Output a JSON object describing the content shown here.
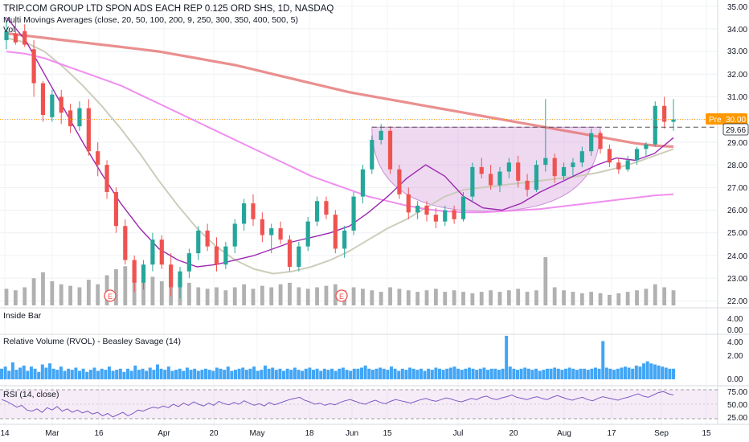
{
  "header": {
    "title": "TRIP.COM GROUP LTD SPON ADS EACH REP 0.125 ORD SHS, 1D, NASDAQ",
    "ma_label": "Multi Movings Averages (close, 20, 50, 100, 200, 9, 250, 300, 350, 400, 500, 5)",
    "vol_label": "Vol"
  },
  "price_axis": {
    "ticks": [
      "35.00",
      "34.00",
      "33.00",
      "32.00",
      "31.00",
      "29.00",
      "28.00",
      "27.00",
      "26.00",
      "25.00",
      "24.00",
      "23.00",
      "22.00"
    ],
    "pre_label": "Pre",
    "pre_value": "30.00",
    "last_value": "29.66"
  },
  "time_axis": {
    "labels": [
      "14",
      "Mar",
      "16",
      "Apr",
      "20",
      "May",
      "18",
      "Jun",
      "15",
      "Jul",
      "20",
      "Aug",
      "17",
      "Sep",
      "15"
    ]
  },
  "earnings_marker": "E",
  "panels": {
    "inside_bar": {
      "title": "Inside Bar",
      "ticks": [
        "4.00",
        "0.00"
      ]
    },
    "rvol": {
      "title": "Relative Volume (RVOL) - Beasley Savage (14)",
      "ticks": [
        "4.00",
        "2.00",
        "0.00"
      ]
    },
    "rsi": {
      "title": "RSI (14, close)",
      "ticks": [
        "75.00",
        "50.00",
        "25.00"
      ]
    }
  },
  "colors": {
    "up": "#26a69a",
    "down": "#ef5350",
    "volume": "#a3a3a3",
    "rvol": "#42a5f5",
    "ma_200": "#e57373",
    "ma_fast": "#9c27b0",
    "ma_50": "#c8c8b4",
    "ma_100": "#ee82ee",
    "rsi_line": "#7e57c2",
    "cup_fill": "#ce93d8"
  },
  "chart_data": {
    "type": "candlestick",
    "title": "TRIP.COM GROUP LTD SPON ADS EACH REP 0.125 ORD SHS, 1D, NASDAQ",
    "ylim": [
      21.8,
      35.2
    ],
    "resistance": 29.66,
    "pre_market": 30.0,
    "ma_200": [
      33.8,
      33.7,
      33.6,
      33.5,
      33.4,
      33.3,
      33.2,
      33.1,
      33.0,
      32.85,
      32.7,
      32.55,
      32.4,
      32.2,
      32.0,
      31.8,
      31.6,
      31.4,
      31.2,
      31.05,
      30.9,
      30.75,
      30.6,
      30.45,
      30.3,
      30.15,
      30.0,
      29.85,
      29.7,
      29.55,
      29.4,
      29.25,
      29.1,
      28.95,
      28.85,
      28.8
    ],
    "ma_100": [
      33.0,
      32.9,
      32.7,
      32.4,
      32.1,
      31.8,
      31.5,
      31.1,
      30.7,
      30.3,
      29.9,
      29.5,
      29.1,
      28.7,
      28.3,
      27.9,
      27.5,
      27.2,
      26.9,
      26.6,
      26.4,
      26.2,
      26.05,
      25.95,
      25.9,
      25.9,
      25.95,
      26.0,
      26.05,
      26.15,
      26.25,
      26.35,
      26.45,
      26.55,
      26.65,
      26.7
    ],
    "ma_50": [
      33.6,
      33.4,
      33.0,
      32.3,
      31.5,
      30.6,
      29.6,
      28.5,
      27.3,
      26.2,
      25.2,
      24.4,
      23.8,
      23.4,
      23.2,
      23.3,
      23.5,
      23.8,
      24.2,
      24.7,
      25.2,
      25.6,
      26.1,
      26.6,
      26.9,
      27.0,
      27.1,
      27.2,
      27.3,
      27.4,
      27.5,
      27.65,
      27.85,
      28.1,
      28.4,
      28.7
    ],
    "ma_fast": [
      34.5,
      33.5,
      32.0,
      30.5,
      29.0,
      27.6,
      26.3,
      25.2,
      24.3,
      23.8,
      23.5,
      23.6,
      23.8,
      24.0,
      24.3,
      24.6,
      24.8,
      25.0,
      25.3,
      25.9,
      26.6,
      27.4,
      28.0,
      27.5,
      26.6,
      26.1,
      26.0,
      26.3,
      26.8,
      27.2,
      27.6,
      28.0,
      28.3,
      28.2,
      28.5,
      29.2
    ],
    "candles": [
      {
        "o": 33.5,
        "h": 34.4,
        "l": 33.1,
        "c": 33.9
      },
      {
        "o": 33.8,
        "h": 34.3,
        "l": 33.3,
        "c": 33.4
      },
      {
        "o": 33.9,
        "h": 34.2,
        "l": 33.2,
        "c": 33.3
      },
      {
        "o": 33.1,
        "h": 33.5,
        "l": 31.0,
        "c": 31.6
      },
      {
        "o": 31.6,
        "h": 31.7,
        "l": 29.9,
        "c": 30.2
      },
      {
        "o": 30.1,
        "h": 31.3,
        "l": 29.9,
        "c": 31.1
      },
      {
        "o": 31.0,
        "h": 31.3,
        "l": 29.8,
        "c": 30.3
      },
      {
        "o": 30.4,
        "h": 30.7,
        "l": 29.4,
        "c": 29.7
      },
      {
        "o": 29.7,
        "h": 30.8,
        "l": 29.5,
        "c": 30.5
      },
      {
        "o": 30.5,
        "h": 30.9,
        "l": 28.4,
        "c": 28.6
      },
      {
        "o": 28.6,
        "h": 29.0,
        "l": 27.5,
        "c": 28.0
      },
      {
        "o": 28.0,
        "h": 28.2,
        "l": 26.5,
        "c": 26.8
      },
      {
        "o": 26.8,
        "h": 27.0,
        "l": 25.0,
        "c": 25.3
      },
      {
        "o": 25.3,
        "h": 25.6,
        "l": 23.6,
        "c": 23.8
      },
      {
        "o": 23.8,
        "h": 24.0,
        "l": 22.4,
        "c": 22.8
      },
      {
        "o": 22.8,
        "h": 23.8,
        "l": 22.5,
        "c": 23.6
      },
      {
        "o": 23.6,
        "h": 25.0,
        "l": 23.3,
        "c": 24.7
      },
      {
        "o": 24.7,
        "h": 24.9,
        "l": 23.4,
        "c": 23.6
      },
      {
        "o": 23.6,
        "h": 24.1,
        "l": 22.2,
        "c": 22.6
      },
      {
        "o": 22.6,
        "h": 23.5,
        "l": 22.1,
        "c": 23.3
      },
      {
        "o": 23.3,
        "h": 24.3,
        "l": 23.0,
        "c": 24.1
      },
      {
        "o": 24.1,
        "h": 25.3,
        "l": 23.8,
        "c": 25.1
      },
      {
        "o": 25.1,
        "h": 25.4,
        "l": 24.2,
        "c": 24.4
      },
      {
        "o": 24.4,
        "h": 24.8,
        "l": 23.3,
        "c": 23.6
      },
      {
        "o": 23.6,
        "h": 24.6,
        "l": 23.4,
        "c": 24.4
      },
      {
        "o": 24.4,
        "h": 25.6,
        "l": 24.1,
        "c": 25.4
      },
      {
        "o": 25.4,
        "h": 26.5,
        "l": 25.1,
        "c": 26.3
      },
      {
        "o": 26.3,
        "h": 26.7,
        "l": 25.3,
        "c": 25.6
      },
      {
        "o": 25.6,
        "h": 25.9,
        "l": 24.6,
        "c": 24.9
      },
      {
        "o": 24.9,
        "h": 25.4,
        "l": 24.1,
        "c": 25.2
      },
      {
        "o": 25.2,
        "h": 25.5,
        "l": 24.5,
        "c": 24.7
      },
      {
        "o": 24.7,
        "h": 24.9,
        "l": 23.3,
        "c": 23.5
      },
      {
        "o": 23.5,
        "h": 24.6,
        "l": 23.3,
        "c": 24.4
      },
      {
        "o": 24.4,
        "h": 25.7,
        "l": 24.2,
        "c": 25.5
      },
      {
        "o": 25.5,
        "h": 26.6,
        "l": 25.3,
        "c": 26.4
      },
      {
        "o": 26.4,
        "h": 26.6,
        "l": 25.6,
        "c": 25.8
      },
      {
        "o": 25.8,
        "h": 26.0,
        "l": 24.1,
        "c": 24.3
      },
      {
        "o": 24.3,
        "h": 25.3,
        "l": 23.9,
        "c": 25.1
      },
      {
        "o": 25.1,
        "h": 26.8,
        "l": 24.9,
        "c": 26.6
      },
      {
        "o": 26.6,
        "h": 28.0,
        "l": 26.3,
        "c": 27.8
      },
      {
        "o": 27.8,
        "h": 29.3,
        "l": 27.6,
        "c": 29.1
      },
      {
        "o": 29.1,
        "h": 29.8,
        "l": 28.9,
        "c": 29.5
      },
      {
        "o": 29.5,
        "h": 29.7,
        "l": 27.6,
        "c": 27.8
      },
      {
        "o": 27.8,
        "h": 28.0,
        "l": 26.5,
        "c": 26.7
      },
      {
        "o": 26.7,
        "h": 27.0,
        "l": 25.6,
        "c": 25.9
      },
      {
        "o": 25.9,
        "h": 26.4,
        "l": 25.6,
        "c": 26.2
      },
      {
        "o": 26.2,
        "h": 26.4,
        "l": 25.5,
        "c": 25.8
      },
      {
        "o": 25.8,
        "h": 26.1,
        "l": 25.2,
        "c": 25.5
      },
      {
        "o": 25.5,
        "h": 26.2,
        "l": 25.3,
        "c": 26.0
      },
      {
        "o": 26.0,
        "h": 26.2,
        "l": 25.4,
        "c": 25.6
      },
      {
        "o": 25.6,
        "h": 26.8,
        "l": 25.5,
        "c": 26.6
      },
      {
        "o": 26.6,
        "h": 28.1,
        "l": 26.4,
        "c": 27.9
      },
      {
        "o": 27.9,
        "h": 28.3,
        "l": 27.4,
        "c": 27.6
      },
      {
        "o": 27.6,
        "h": 28.0,
        "l": 26.9,
        "c": 27.1
      },
      {
        "o": 27.1,
        "h": 27.9,
        "l": 26.8,
        "c": 27.7
      },
      {
        "o": 27.7,
        "h": 28.3,
        "l": 27.4,
        "c": 28.1
      },
      {
        "o": 28.1,
        "h": 28.4,
        "l": 27.0,
        "c": 27.3
      },
      {
        "o": 27.3,
        "h": 27.6,
        "l": 26.6,
        "c": 26.9
      },
      {
        "o": 26.9,
        "h": 28.2,
        "l": 26.8,
        "c": 28.0
      },
      {
        "o": 28.0,
        "h": 30.9,
        "l": 27.7,
        "c": 28.3
      },
      {
        "o": 28.3,
        "h": 28.5,
        "l": 27.2,
        "c": 27.5
      },
      {
        "o": 27.5,
        "h": 28.1,
        "l": 27.3,
        "c": 27.9
      },
      {
        "o": 27.9,
        "h": 28.3,
        "l": 27.5,
        "c": 28.1
      },
      {
        "o": 28.1,
        "h": 28.8,
        "l": 27.9,
        "c": 28.6
      },
      {
        "o": 28.6,
        "h": 29.6,
        "l": 28.4,
        "c": 29.4
      },
      {
        "o": 29.4,
        "h": 29.5,
        "l": 28.5,
        "c": 28.7
      },
      {
        "o": 28.7,
        "h": 28.9,
        "l": 27.9,
        "c": 28.1
      },
      {
        "o": 28.1,
        "h": 28.3,
        "l": 27.6,
        "c": 27.8
      },
      {
        "o": 27.8,
        "h": 28.4,
        "l": 27.7,
        "c": 28.2
      },
      {
        "o": 28.2,
        "h": 28.8,
        "l": 28.0,
        "c": 28.7
      },
      {
        "o": 28.7,
        "h": 29.0,
        "l": 28.4,
        "c": 28.9
      },
      {
        "o": 28.9,
        "h": 30.8,
        "l": 28.8,
        "c": 30.6
      },
      {
        "o": 30.6,
        "h": 31.0,
        "l": 29.6,
        "c": 29.9
      },
      {
        "o": 29.9,
        "h": 30.9,
        "l": 29.5,
        "c": 30.0
      }
    ],
    "volume": [
      0.55,
      0.5,
      0.6,
      0.9,
      1.1,
      0.8,
      0.7,
      0.65,
      0.6,
      0.85,
      0.7,
      1.0,
      1.2,
      1.3,
      1.5,
      0.9,
      0.95,
      0.8,
      1.1,
      0.7,
      0.75,
      0.6,
      0.55,
      0.6,
      0.5,
      0.6,
      0.7,
      0.55,
      0.65,
      0.6,
      0.7,
      0.75,
      0.6,
      0.55,
      0.6,
      0.65,
      0.7,
      0.5,
      0.6,
      0.55,
      0.5,
      0.45,
      0.6,
      0.55,
      0.5,
      0.45,
      0.5,
      0.55,
      0.45,
      0.5,
      0.45,
      0.4,
      0.45,
      0.5,
      0.45,
      0.5,
      0.55,
      0.45,
      0.5,
      1.6,
      0.6,
      0.5,
      0.45,
      0.4,
      0.45,
      0.4,
      0.35,
      0.4,
      0.45,
      0.5,
      0.55,
      0.7,
      0.6,
      0.5
    ],
    "rvol": [
      1.0,
      1.2,
      0.8,
      1.6,
      0.9,
      1.1,
      1.3,
      0.8,
      1.2,
      1.0,
      0.7,
      1.4,
      1.1,
      1.5,
      1.0,
      0.9,
      1.2,
      0.8,
      1.0,
      0.9,
      1.1,
      0.8,
      1.0,
      0.7,
      0.9,
      1.1,
      0.8,
      1.0,
      0.9,
      1.2,
      0.8,
      0.9,
      1.0,
      0.7,
      1.0,
      0.8,
      1.3,
      0.9,
      1.0,
      0.8,
      1.1,
      0.9,
      1.4,
      1.0,
      0.9,
      1.2,
      0.8,
      0.9,
      1.0,
      0.8,
      1.1,
      0.9,
      1.0,
      0.8,
      0.9,
      1.0,
      0.9,
      0.8,
      1.1,
      1.0,
      0.9,
      1.2,
      0.8,
      0.9,
      1.0,
      1.1,
      0.9,
      1.0,
      1.2,
      0.8,
      0.9,
      1.3,
      1.0,
      1.1,
      0.9,
      1.0,
      0.8,
      1.0,
      0.9,
      1.1,
      0.9,
      0.8,
      1.0,
      1.1,
      0.9,
      1.0,
      0.8,
      1.0,
      0.9,
      1.0,
      0.8,
      1.0,
      1.1,
      0.9,
      0.8,
      1.0,
      1.0,
      1.1,
      1.3,
      1.0,
      0.9,
      1.0,
      1.1,
      1.0,
      0.9,
      1.2,
      1.0,
      0.8,
      1.0,
      0.9,
      1.1,
      1.0,
      0.9,
      1.0,
      0.8,
      1.0,
      0.9,
      1.1,
      1.0,
      0.9,
      1.0,
      1.1,
      1.2,
      1.0,
      0.9,
      1.0,
      1.1,
      1.0,
      0.9,
      1.0,
      1.1,
      0.9,
      1.0,
      1.0,
      0.9,
      1.0,
      4.1,
      1.2,
      1.0,
      0.9,
      1.0,
      1.1,
      1.0,
      0.9,
      1.0,
      0.8,
      0.9,
      1.0,
      1.0,
      1.1,
      1.0,
      0.9,
      1.0,
      1.1,
      1.0,
      0.9,
      1.0,
      1.0,
      0.9,
      1.0,
      1.1,
      1.0,
      3.6,
      1.1,
      1.0,
      0.9,
      1.0,
      1.1,
      1.2,
      1.1,
      1.0,
      1.3,
      1.2,
      1.5,
      1.7,
      1.5,
      1.4,
      1.3,
      1.2,
      1.1,
      1.0,
      1.0
    ],
    "rsi": [
      58,
      55,
      50,
      45,
      48,
      40,
      38,
      42,
      36,
      44,
      40,
      46,
      38,
      42,
      36,
      40,
      35,
      38,
      33,
      36,
      30,
      34,
      28,
      32,
      36,
      30,
      34,
      40,
      38,
      42,
      45,
      43,
      47,
      44,
      50,
      46,
      52,
      48,
      54,
      50,
      47,
      52,
      48,
      55,
      51,
      49,
      53,
      50,
      56,
      52,
      48,
      51,
      47,
      53,
      49,
      52,
      55,
      58,
      60,
      62,
      57,
      54,
      50,
      52,
      48,
      51,
      49,
      53,
      56,
      58,
      55,
      52,
      50,
      54,
      57,
      53,
      51,
      55,
      58,
      56,
      54,
      52,
      55,
      58,
      60,
      57,
      55,
      58,
      61,
      59,
      56,
      54,
      57,
      60,
      58,
      62,
      64,
      60,
      58,
      61,
      63,
      66,
      62,
      60,
      58,
      61,
      63,
      60,
      58,
      62,
      65,
      62,
      59,
      57,
      60,
      62,
      58,
      56,
      60,
      63,
      61,
      59,
      57,
      60,
      62,
      65,
      68,
      64,
      62,
      66,
      70,
      72,
      68,
      66
    ]
  }
}
